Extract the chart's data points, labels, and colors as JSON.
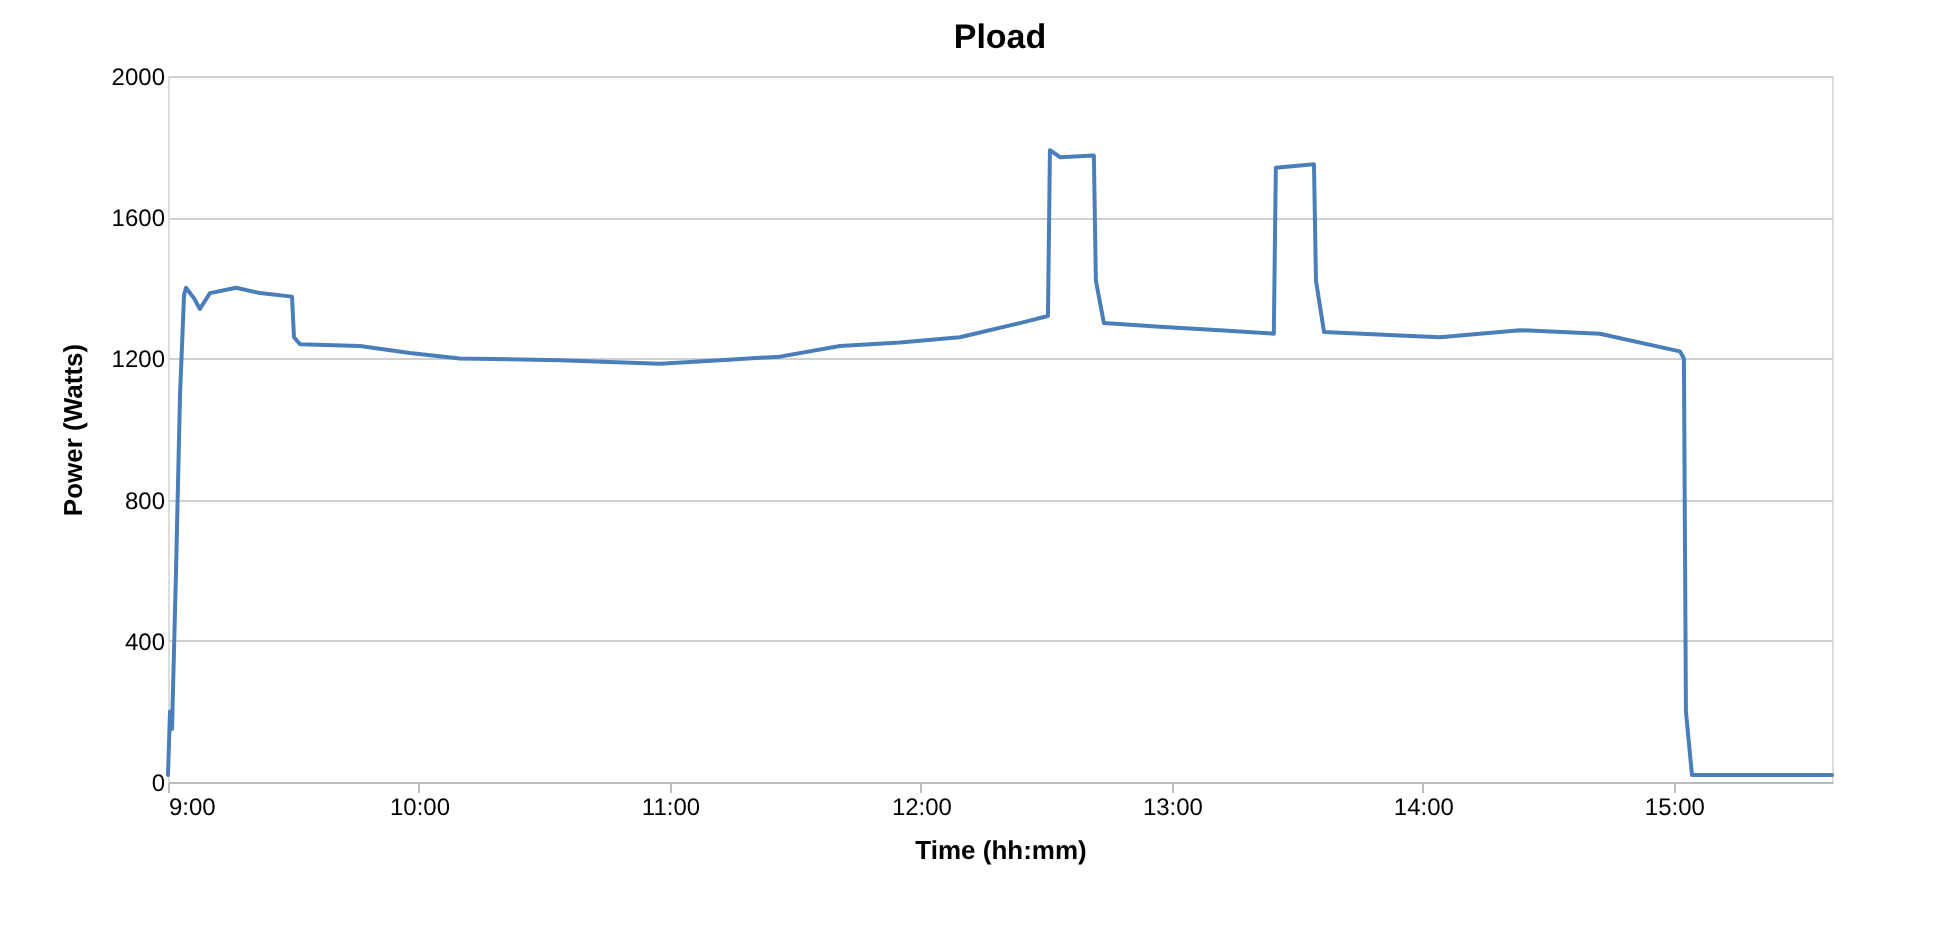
{
  "chart_data": {
    "type": "line",
    "title": "Pload",
    "xlabel": "Time (hh:mm)",
    "ylabel": "Power (Watts)",
    "xlim": [
      9,
      15.63
    ],
    "xticks": [
      {
        "value": 9,
        "label": "9:00"
      },
      {
        "value": 10,
        "label": "10:00"
      },
      {
        "value": 11,
        "label": "11:00"
      },
      {
        "value": 12,
        "label": "12:00"
      },
      {
        "value": 13,
        "label": "13:00"
      },
      {
        "value": 14,
        "label": "14:00"
      },
      {
        "value": 15,
        "label": "15:00"
      }
    ],
    "ylim": [
      0,
      2000
    ],
    "yticks": [
      0,
      400,
      800,
      1200,
      1600,
      2000
    ],
    "grid": "y",
    "legend": false,
    "marker": "none",
    "line_style": "solid",
    "series": [
      {
        "color": "#4a7ebb",
        "x": [
          9.0,
          9.008,
          9.016,
          9.032,
          9.048,
          9.064,
          9.072,
          9.104,
          9.127,
          9.167,
          9.271,
          9.367,
          9.494,
          9.502,
          9.526,
          9.765,
          9.964,
          10.163,
          10.562,
          10.96,
          11.2,
          11.438,
          11.677,
          11.916,
          12.155,
          12.394,
          12.506,
          12.514,
          12.554,
          12.689,
          12.697,
          12.729,
          12.952,
          13.191,
          13.406,
          13.414,
          13.566,
          13.574,
          13.606,
          13.908,
          14.068,
          14.386,
          14.705,
          15.024,
          15.04,
          15.048,
          15.072,
          15.63
        ],
        "values": [
          20,
          200,
          150,
          600,
          1100,
          1380,
          1400,
          1370,
          1340,
          1385,
          1400,
          1385,
          1375,
          1260,
          1240,
          1235,
          1215,
          1200,
          1195,
          1185,
          1195,
          1205,
          1235,
          1245,
          1260,
          1300,
          1320,
          1790,
          1770,
          1775,
          1420,
          1300,
          1290,
          1280,
          1270,
          1740,
          1750,
          1420,
          1275,
          1265,
          1260,
          1280,
          1270,
          1220,
          1200,
          200,
          20,
          20
        ]
      }
    ]
  }
}
